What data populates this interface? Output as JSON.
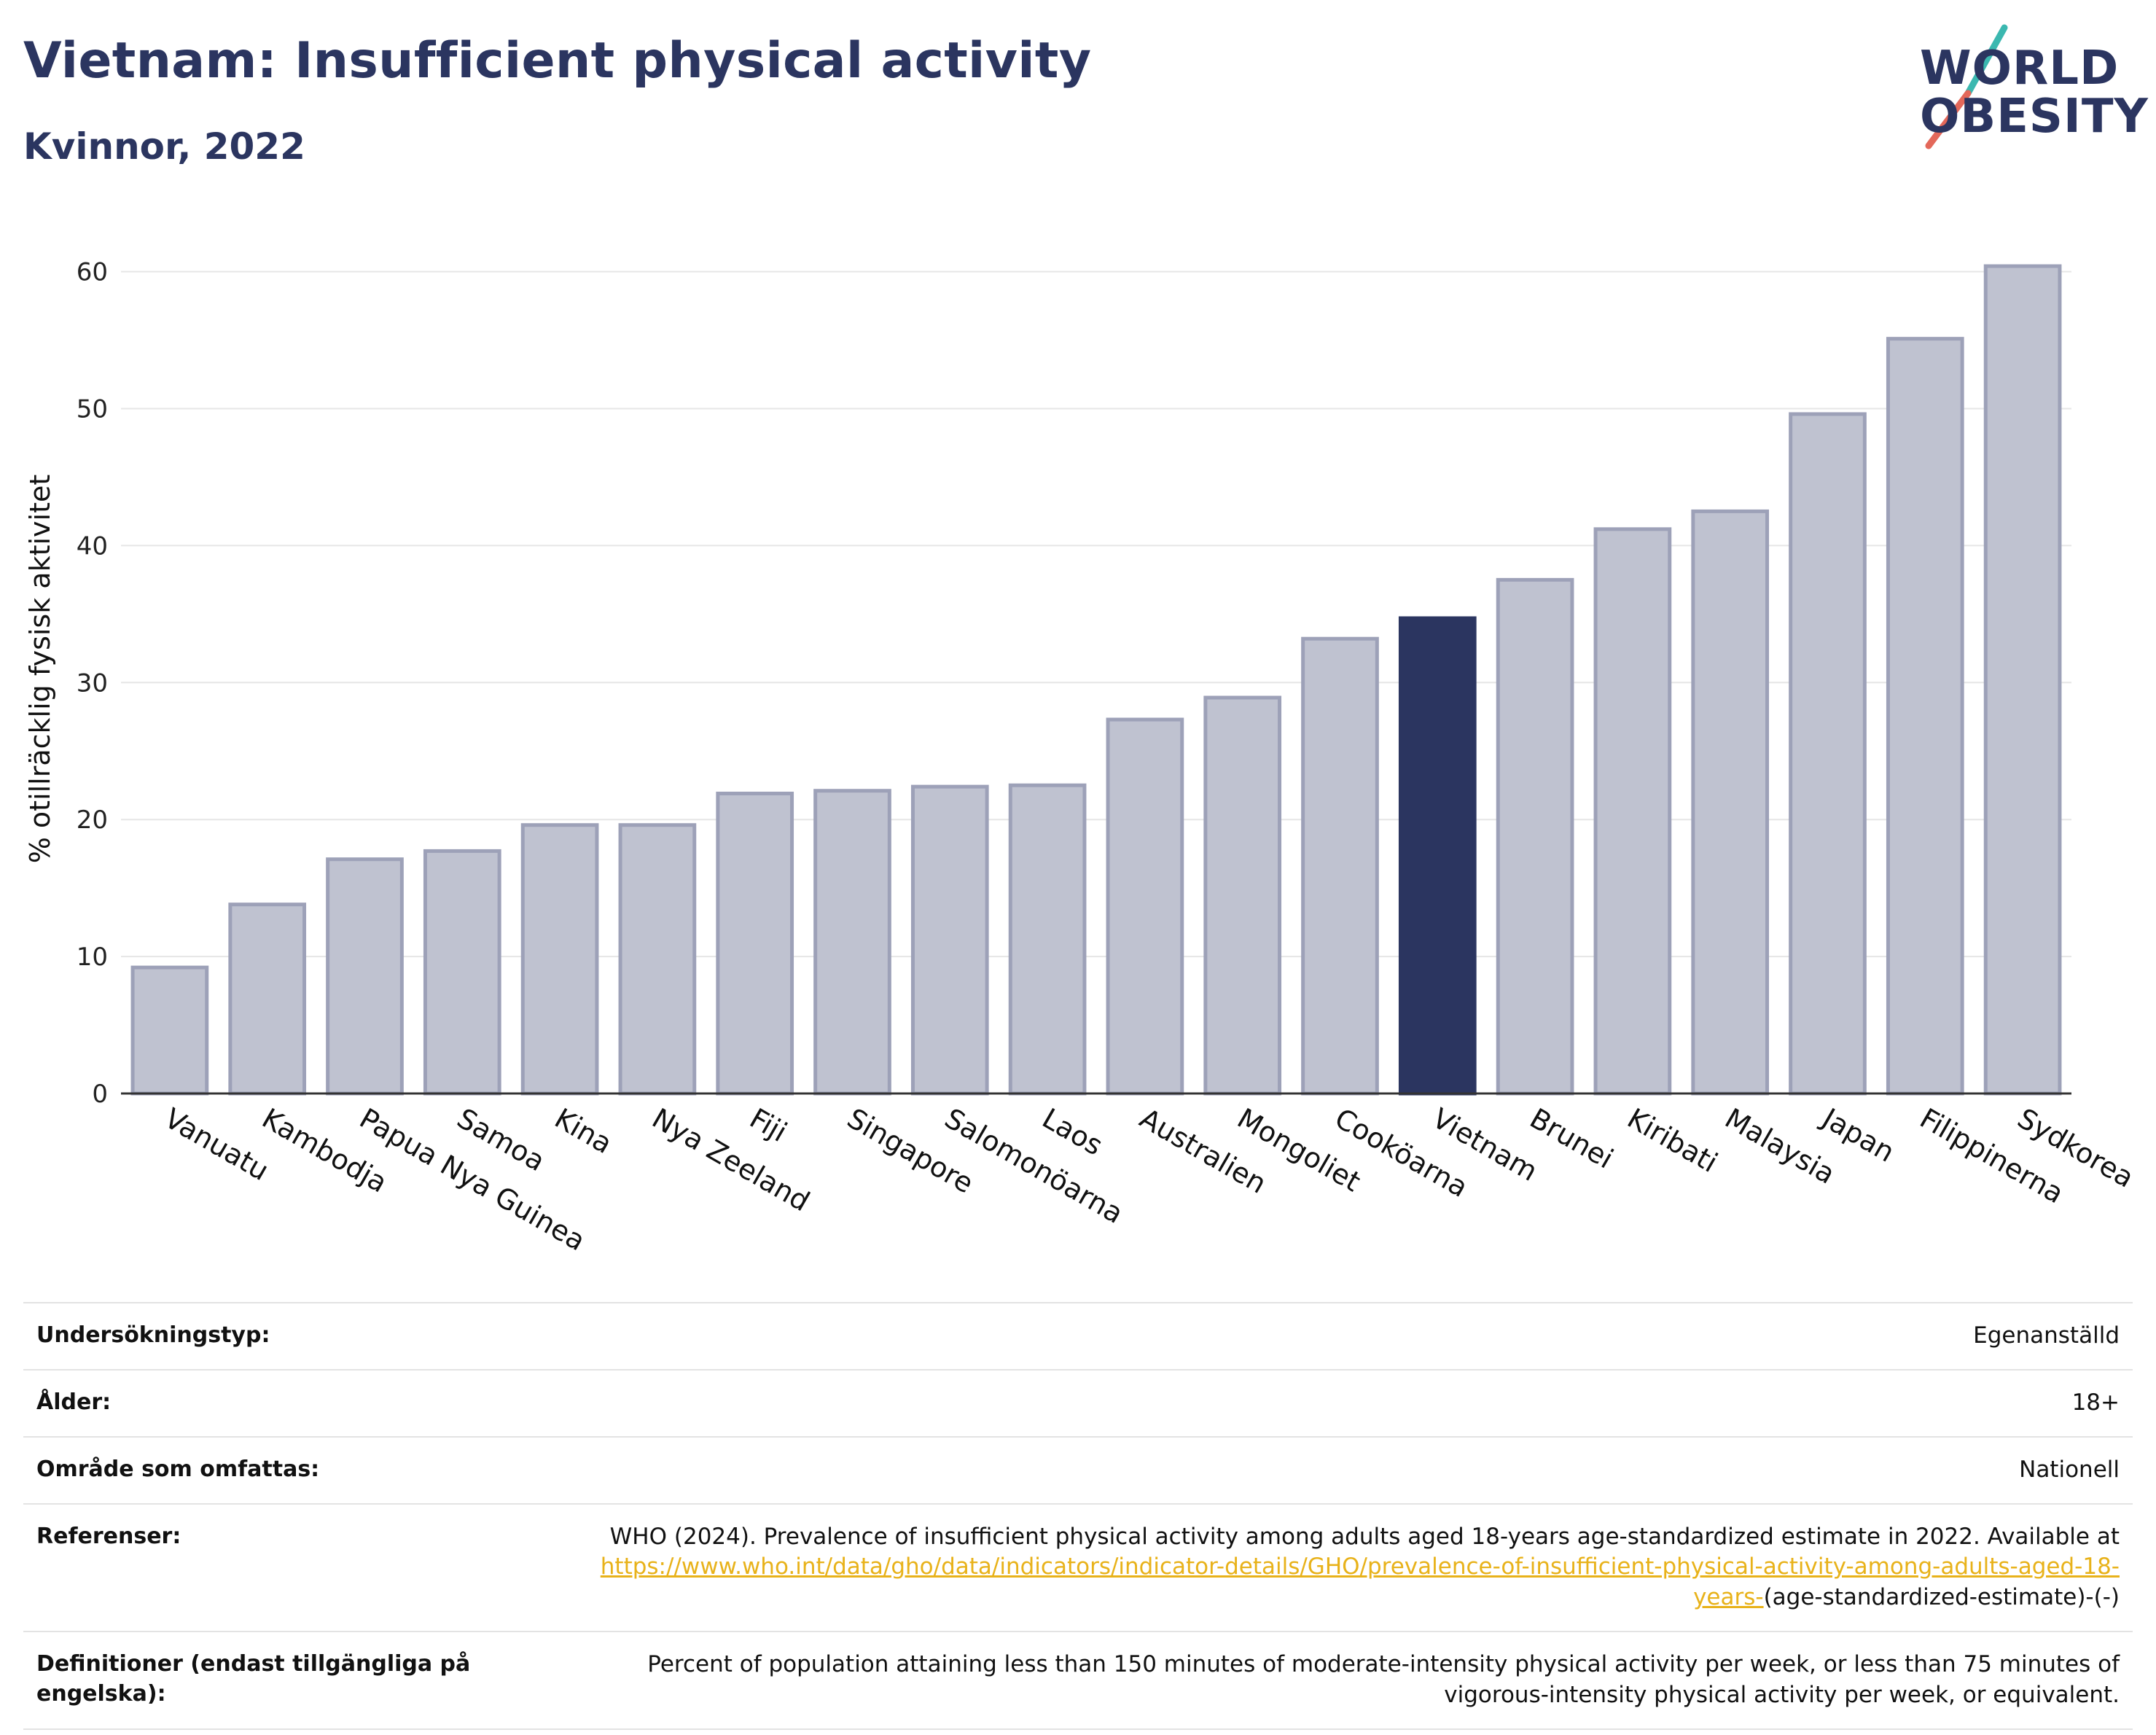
{
  "header": {
    "title": "Vietnam: Insufficient physical activity",
    "subtitle": "Kvinnor, 2022"
  },
  "logo": {
    "line1": "WORLD",
    "line2": "OBESITY",
    "accent_teal": "#3bb8b0",
    "accent_red": "#e3685a"
  },
  "colors": {
    "bar_default": "#bfc2d0",
    "bar_default_stroke": "#9da1b8",
    "bar_highlight": "#2b3560",
    "text_dark": "#2b3560",
    "link": "#e8b21a"
  },
  "chart_data": {
    "type": "bar",
    "title": "Vietnam: Insufficient physical activity",
    "subtitle": "Kvinnor, 2022",
    "xlabel": "",
    "ylabel": "% otillräcklig fysisk aktivitet",
    "ylim": [
      0,
      62
    ],
    "yticks": [
      0,
      10,
      20,
      30,
      40,
      50,
      60
    ],
    "grid": true,
    "highlight": "Vietnam",
    "categories": [
      "Vanuatu",
      "Kambodja",
      "Papua Nya Guinea",
      "Samoa",
      "Kina",
      "Nya Zeeland",
      "Fiji",
      "Singapore",
      "Salomonöarna",
      "Laos",
      "Australien",
      "Mongoliet",
      "Cooköarna",
      "Vietnam",
      "Brunei",
      "Kiribati",
      "Malaysia",
      "Japan",
      "Filippinerna",
      "Sydkorea"
    ],
    "values": [
      9.2,
      13.8,
      17.1,
      17.7,
      19.6,
      19.6,
      21.9,
      22.1,
      22.4,
      22.5,
      27.3,
      28.9,
      33.2,
      34.7,
      37.5,
      41.2,
      42.5,
      49.6,
      55.1,
      60.4
    ]
  },
  "meta": [
    {
      "key": "Undersökningstyp:",
      "value": "Egenanställd"
    },
    {
      "key": "Ålder:",
      "value": "18+"
    },
    {
      "key": "Område som omfattas:",
      "value": "Nationell"
    },
    {
      "key": "Referenser:",
      "value_prefix": "WHO (2024). Prevalence of insufficient physical activity among adults aged 18-years age-standardized estimate in 2022. Available at",
      "link_text": "https://www.who.int/data/gho/data/indicators/indicator-details/GHO/prevalence-of-insufficient-physical-activity-among-adults-aged-18-years-",
      "value_suffix": "(age-standardized-estimate)-(-)"
    },
    {
      "key": "Definitioner (endast tillgängliga på engelska):",
      "value": "Percent of population attaining less than 150 minutes of moderate-intensity physical activity per week, or less than 75 minutes of vigorous-intensity physical activity per week, or equivalent."
    }
  ]
}
